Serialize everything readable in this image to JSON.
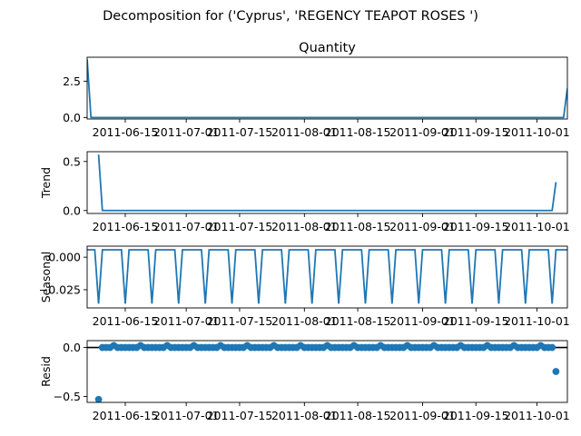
{
  "figure": {
    "suptitle": "Decomposition for ('Cyprus', 'REGENCY TEAPOT ROSES ')"
  },
  "colors": {
    "series": "#1f77b4",
    "axes": "#000000",
    "background": "#ffffff"
  },
  "chart_data": [
    {
      "id": "observed",
      "type": "line",
      "title": "Quantity",
      "ylabel": "",
      "ylim": [
        -0.1,
        4.15
      ],
      "yticks": [
        0.0,
        2.5
      ],
      "ytick_labels": [
        "0.0",
        "2.5"
      ],
      "x_range": [
        "2011-06-05",
        "2011-10-09"
      ],
      "xticks": [
        "2011-06-15",
        "2011-07-01",
        "2011-07-15",
        "2011-08-01",
        "2011-08-15",
        "2011-09-01",
        "2011-09-15",
        "2011-10-01"
      ],
      "xtick_labels": [
        "2011-06-15",
        "2011-07-01",
        "2011-07-15",
        "2011-08-01",
        "2011-08-15",
        "2011-09-01",
        "2011-09-15",
        "2011-10-01"
      ],
      "x": [
        "2011-06-05",
        "2011-06-06",
        "2011-10-08",
        "2011-10-09"
      ],
      "y": [
        4.0,
        0.0,
        0.0,
        2.0
      ]
    },
    {
      "id": "trend",
      "type": "line",
      "title": "",
      "ylabel": "Trend",
      "ylim": [
        -0.03,
        0.6
      ],
      "yticks": [
        0.0,
        0.5
      ],
      "ytick_labels": [
        "0.0",
        "0.5"
      ],
      "x_range": [
        "2011-06-05",
        "2011-10-09"
      ],
      "xticks": [
        "2011-06-15",
        "2011-07-01",
        "2011-07-15",
        "2011-08-01",
        "2011-08-15",
        "2011-09-01",
        "2011-09-15",
        "2011-10-01"
      ],
      "xtick_labels": [
        "2011-06-15",
        "2011-07-01",
        "2011-07-15",
        "2011-08-01",
        "2011-08-15",
        "2011-09-01",
        "2011-09-15",
        "2011-10-01"
      ],
      "x": [
        "2011-06-08",
        "2011-06-09",
        "2011-10-05",
        "2011-10-06"
      ],
      "y": [
        0.57,
        0.0,
        0.0,
        0.29
      ]
    },
    {
      "id": "seasonal",
      "type": "line",
      "title": "",
      "ylabel": "Seasonal",
      "ylim": [
        -0.039,
        0.0085
      ],
      "yticks": [
        0.0,
        -0.025
      ],
      "ytick_labels": [
        "0.000",
        "−0.025"
      ],
      "x_range": [
        "2011-06-05",
        "2011-10-09"
      ],
      "xticks": [
        "2011-06-15",
        "2011-07-01",
        "2011-07-15",
        "2011-08-01",
        "2011-08-15",
        "2011-09-01",
        "2011-09-15",
        "2011-10-01"
      ],
      "xtick_labels": [
        "2011-06-15",
        "2011-07-01",
        "2011-07-15",
        "2011-08-01",
        "2011-08-15",
        "2011-09-01",
        "2011-09-15",
        "2011-10-01"
      ],
      "period_days": 7,
      "pattern": [
        0.0057,
        -0.0357,
        0.0057,
        0.0057,
        0.0057,
        0.0057,
        0.0057
      ],
      "phase_start": "2011-06-07",
      "start": "2011-06-05",
      "end": "2011-10-09"
    },
    {
      "id": "resid",
      "type": "scatter",
      "title": "",
      "ylabel": "Resid",
      "ylim": [
        -0.56,
        0.07
      ],
      "yticks": [
        0.0,
        -0.5
      ],
      "ytick_labels": [
        "0.0",
        "−0.5"
      ],
      "x_range": [
        "2011-06-05",
        "2011-10-09"
      ],
      "xticks": [
        "2011-06-15",
        "2011-07-01",
        "2011-07-15",
        "2011-08-01",
        "2011-08-15",
        "2011-09-01",
        "2011-09-15",
        "2011-10-01"
      ],
      "xtick_labels": [
        "2011-06-15",
        "2011-07-01",
        "2011-07-15",
        "2011-08-01",
        "2011-08-15",
        "2011-09-01",
        "2011-09-15",
        "2011-10-01"
      ],
      "baseline": 0.0,
      "start": "2011-06-09",
      "end": "2011-10-05",
      "period_days": 7,
      "pattern": [
        0.0,
        0.0,
        0.0,
        0.0,
        0.0,
        0.0,
        0.0
      ],
      "peak_days": 1,
      "peak_value": 0.02,
      "peak_phase_start": "2011-06-12",
      "outliers": [
        {
          "x": "2011-06-08",
          "y": -0.53
        },
        {
          "x": "2011-10-06",
          "y": -0.245
        }
      ]
    }
  ]
}
